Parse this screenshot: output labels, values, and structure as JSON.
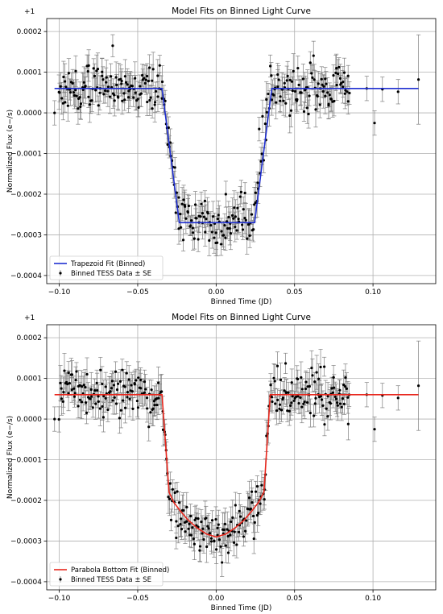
{
  "chart_data": [
    {
      "type": "scatter",
      "title": "Model Fits on Binned Light Curve",
      "xlabel": "Binned Time (JD)",
      "ylabel": "Normalized Flux (e−/s)",
      "offset_label": "+1",
      "xlim": [
        -0.108,
        0.14
      ],
      "ylim": [
        -0.00042,
        0.000232
      ],
      "xticks": [
        -0.1,
        -0.05,
        0.0,
        0.05,
        0.1
      ],
      "xtick_labels": [
        "−0.10",
        "−0.05",
        "0.00",
        "0.05",
        "0.10"
      ],
      "yticks": [
        -0.0004,
        -0.0003,
        -0.0002,
        -0.0001,
        0.0,
        0.0001,
        0.0002
      ],
      "ytick_labels": [
        "−0.0004",
        "−0.0003",
        "−0.0002",
        "−0.0001",
        "0.0000",
        "0.0001",
        "0.0002"
      ],
      "grid": true,
      "legend_position": "lower-left",
      "series": [
        {
          "name": "Trapezoid Fit (Binned)",
          "kind": "line",
          "color": "#1f2fd0",
          "x": [
            -0.103,
            -0.0345,
            -0.0235,
            0.0245,
            0.0355,
            0.129
          ],
          "y": [
            6e-05,
            6e-05,
            -0.00027,
            -0.00027,
            6e-05,
            6e-05
          ]
        },
        {
          "name": "Binned TESS Data ± SE",
          "kind": "errorbar",
          "color": "#000000",
          "errcolor": "#7f7f7f",
          "noise_seed": 7
        }
      ],
      "model": {
        "depth": 0.00033,
        "baseline": 6e-05,
        "t1": 0.0345,
        "t2": 0.0235,
        "shape": "trapezoid"
      }
    },
    {
      "type": "scatter",
      "title": "Model Fits on Binned Light Curve",
      "xlabel": "Binned Time (JD)",
      "ylabel": "Normalized Flux (e−/s)",
      "offset_label": "+1",
      "xlim": [
        -0.108,
        0.14
      ],
      "ylim": [
        -0.00042,
        0.000232
      ],
      "xticks": [
        -0.1,
        -0.05,
        0.0,
        0.05,
        0.1
      ],
      "xtick_labels": [
        "−0.10",
        "−0.05",
        "0.00",
        "0.05",
        "0.10"
      ],
      "yticks": [
        -0.0004,
        -0.0003,
        -0.0002,
        -0.0001,
        0.0,
        0.0001,
        0.0002
      ],
      "ytick_labels": [
        "−0.0004",
        "−0.0003",
        "−0.0002",
        "−0.0001",
        "0.0000",
        "0.0001",
        "0.0002"
      ],
      "grid": true,
      "legend_position": "lower-left",
      "series": [
        {
          "name": "Parabola Bottom Fit (Binned)",
          "kind": "line",
          "color": "#e8261c",
          "x": [
            -0.103,
            -0.0345,
            -0.03,
            -0.027,
            -0.023,
            -0.018,
            -0.012,
            -0.006,
            0.0,
            0.006,
            0.012,
            0.018,
            0.023,
            0.027,
            0.0305,
            0.0345,
            0.129
          ],
          "y": [
            6e-05,
            6e-05,
            -0.00018,
            -0.000205,
            -0.000225,
            -0.000248,
            -0.000268,
            -0.000283,
            -0.00029,
            -0.000283,
            -0.000268,
            -0.000248,
            -0.000225,
            -0.000205,
            -0.00018,
            6e-05,
            6e-05
          ]
        },
        {
          "name": "Binned TESS Data ± SE",
          "kind": "errorbar",
          "color": "#000000",
          "errcolor": "#7f7f7f",
          "noise_seed": 7
        }
      ],
      "model": {
        "depth": 0.00035,
        "baseline": 6e-05,
        "t1": 0.0345,
        "t2": 0.0305,
        "shape": "parabola"
      }
    }
  ]
}
